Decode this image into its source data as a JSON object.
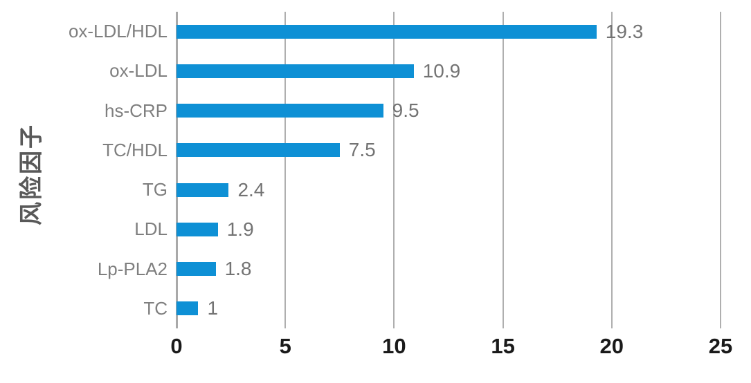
{
  "chart_data": {
    "type": "bar",
    "orientation": "horizontal",
    "title": "",
    "xlabel": "",
    "ylabel": "风险因子",
    "categories": [
      "ox-LDL/HDL",
      "ox-LDL",
      "hs-CRP",
      "TC/HDL",
      "TG",
      "LDL",
      "Lp-PLA2",
      "TC"
    ],
    "values": [
      19.3,
      10.9,
      9.5,
      7.5,
      2.4,
      1.9,
      1.8,
      1
    ],
    "data_labels": [
      "19.3",
      "10.9",
      "9.5",
      "7.5",
      "2.4",
      "1.9",
      "1.8",
      "1"
    ],
    "x_ticks": [
      "0",
      "5",
      "10",
      "15",
      "20",
      "25"
    ],
    "x_tick_values": [
      0,
      5,
      10,
      15,
      20,
      25
    ],
    "xlim": [
      0,
      25
    ],
    "grid": true,
    "gridlines_vertical_at": [
      5,
      10,
      15,
      20,
      25
    ],
    "legend": "none",
    "colors": {
      "bar": "#0E90D5",
      "gridline": "#AFAFAF",
      "axis_line": "#A9A9A9",
      "category_label": "#7F7F7F",
      "value_label": "#737373",
      "tick_label": "#1A1A1A",
      "axis_title": "#595959",
      "background": "#FFFFFF"
    }
  }
}
